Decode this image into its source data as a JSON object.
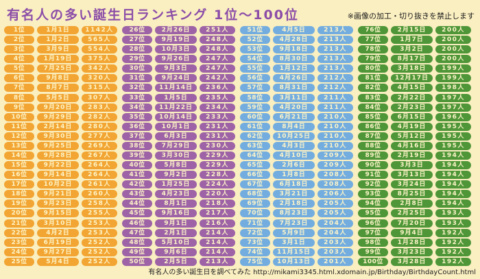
{
  "title": "有名人の多い誕生日ランキング 1位〜100位",
  "notice": "※画像の加工・切り抜きを禁止します",
  "footer": "有名人の多い誕生日を調べてみた http://mikami3345.html.xdomain.jp/Birthday/BirthdayCount.html",
  "colors": {
    "background": "#FAEFC1",
    "orange": "#F2A532",
    "purple": "#9D63A6",
    "blue": "#73ADDF",
    "green": "#4E9638",
    "title_text": "#8B4DA8",
    "pill_text": "#FDF4C8"
  },
  "columns": [
    {
      "color_key": "orange",
      "rows": [
        {
          "rank": "1位",
          "date": "1月1日",
          "count": "1142人"
        },
        {
          "rank": "2位",
          "date": "1月2日",
          "count": "565人"
        },
        {
          "rank": "3位",
          "date": "3月9日",
          "count": "554人"
        },
        {
          "rank": "4位",
          "date": "1月19日",
          "count": "375人"
        },
        {
          "rank": "5位",
          "date": "7月25日",
          "count": "342人"
        },
        {
          "rank": "6位",
          "date": "9月8日",
          "count": "320人"
        },
        {
          "rank": "7位",
          "date": "8月7日",
          "count": "315人"
        },
        {
          "rank": "8位",
          "date": "5月5日",
          "count": "307人"
        },
        {
          "rank": "9位",
          "date": "9月20日",
          "count": "283人"
        },
        {
          "rank": "10位",
          "date": "9月29日",
          "count": "282人"
        },
        {
          "rank": "11位",
          "date": "2月14日",
          "count": "280人"
        },
        {
          "rank": "12位",
          "date": "9月30日",
          "count": "277人"
        },
        {
          "rank": "13位",
          "date": "9月25日",
          "count": "269人"
        },
        {
          "rank": "14位",
          "date": "9月28日",
          "count": "267人"
        },
        {
          "rank": "15位",
          "date": "9月22日",
          "count": "264人"
        },
        {
          "rank": "16位",
          "date": "9月14日",
          "count": "264人"
        },
        {
          "rank": "17位",
          "date": "10月2日",
          "count": "261人"
        },
        {
          "rank": "18位",
          "date": "9月21日",
          "count": "260人"
        },
        {
          "rank": "19位",
          "date": "9月23日",
          "count": "258人"
        },
        {
          "rank": "20位",
          "date": "9月15日",
          "count": "255人"
        },
        {
          "rank": "21位",
          "date": "3月10日",
          "count": "253人"
        },
        {
          "rank": "22位",
          "date": "4月2日",
          "count": "253人"
        },
        {
          "rank": "23位",
          "date": "6月19日",
          "count": "252人"
        },
        {
          "rank": "24位",
          "date": "9月27日",
          "count": "252人"
        },
        {
          "rank": "25位",
          "date": "5月4日",
          "count": "252人"
        }
      ]
    },
    {
      "color_key": "purple",
      "rows": [
        {
          "rank": "26位",
          "date": "2月26日",
          "count": "251人"
        },
        {
          "rank": "27位",
          "date": "9月19日",
          "count": "248人"
        },
        {
          "rank": "28位",
          "date": "10月3日",
          "count": "248人"
        },
        {
          "rank": "29位",
          "date": "9月26日",
          "count": "247人"
        },
        {
          "rank": "30位",
          "date": "9月3日",
          "count": "247人"
        },
        {
          "rank": "31位",
          "date": "9月24日",
          "count": "242人"
        },
        {
          "rank": "32位",
          "date": "11月14日",
          "count": "236人"
        },
        {
          "rank": "33位",
          "date": "1月5日",
          "count": "235人"
        },
        {
          "rank": "34位",
          "date": "11月22日",
          "count": "234人"
        },
        {
          "rank": "35位",
          "date": "10月14日",
          "count": "233人"
        },
        {
          "rank": "36位",
          "date": "10月1日",
          "count": "231人"
        },
        {
          "rank": "37位",
          "date": "6月3日",
          "count": "231人"
        },
        {
          "rank": "38位",
          "date": "7月29日",
          "count": "230人"
        },
        {
          "rank": "39位",
          "date": "3月30日",
          "count": "229人"
        },
        {
          "rank": "40位",
          "date": "5月8日",
          "count": "229人"
        },
        {
          "rank": "41位",
          "date": "9月2日",
          "count": "228人"
        },
        {
          "rank": "42位",
          "date": "1月25日",
          "count": "224人"
        },
        {
          "rank": "43位",
          "date": "4月23日",
          "count": "220人"
        },
        {
          "rank": "44位",
          "date": "8月1日",
          "count": "218人"
        },
        {
          "rank": "45位",
          "date": "9月16日",
          "count": "217人"
        },
        {
          "rank": "46位",
          "date": "9月1日",
          "count": "216人"
        },
        {
          "rank": "47位",
          "date": "2月1日",
          "count": "214人"
        },
        {
          "rank": "48位",
          "date": "5月10日",
          "count": "214人"
        },
        {
          "rank": "49位",
          "date": "9月6日",
          "count": "214人"
        },
        {
          "rank": "50位",
          "date": "2月5日",
          "count": "213人"
        }
      ]
    },
    {
      "color_key": "blue",
      "rows": [
        {
          "rank": "51位",
          "date": "4月5日",
          "count": "213人"
        },
        {
          "rank": "52位",
          "date": "4月28日",
          "count": "213人"
        },
        {
          "rank": "53位",
          "date": "9月18日",
          "count": "213人"
        },
        {
          "rank": "54位",
          "date": "8月30日",
          "count": "213人"
        },
        {
          "rank": "55位",
          "date": "1月12日",
          "count": "213人"
        },
        {
          "rank": "56位",
          "date": "4月26日",
          "count": "212人"
        },
        {
          "rank": "57位",
          "date": "8月31日",
          "count": "212人"
        },
        {
          "rank": "58位",
          "date": "3月11日",
          "count": "211人"
        },
        {
          "rank": "59位",
          "date": "4月20日",
          "count": "211人"
        },
        {
          "rank": "60位",
          "date": "6月21日",
          "count": "210人"
        },
        {
          "rank": "61位",
          "date": "8月4日",
          "count": "210人"
        },
        {
          "rank": "62位",
          "date": "10月25日",
          "count": "210人"
        },
        {
          "rank": "63位",
          "date": "4月3日",
          "count": "210人"
        },
        {
          "rank": "64位",
          "date": "4月10日",
          "count": "209人"
        },
        {
          "rank": "65位",
          "date": "2月6日",
          "count": "209人"
        },
        {
          "rank": "66位",
          "date": "1月8日",
          "count": "208人"
        },
        {
          "rank": "67位",
          "date": "6月18日",
          "count": "208人"
        },
        {
          "rank": "68位",
          "date": "3月21日",
          "count": "206人"
        },
        {
          "rank": "69位",
          "date": "2月18日",
          "count": "205人"
        },
        {
          "rank": "70位",
          "date": "8月23日",
          "count": "205人"
        },
        {
          "rank": "71位",
          "date": "7月23日",
          "count": "204人"
        },
        {
          "rank": "72位",
          "date": "5月9日",
          "count": "204人"
        },
        {
          "rank": "73位",
          "date": "3月1日",
          "count": "203人"
        },
        {
          "rank": "74位",
          "date": "11月15日",
          "count": "203人"
        },
        {
          "rank": "75位",
          "date": "10月13日",
          "count": "201人"
        }
      ]
    },
    {
      "color_key": "green",
      "rows": [
        {
          "rank": "76位",
          "date": "2月15日",
          "count": "200人"
        },
        {
          "rank": "77位",
          "date": "1月7日",
          "count": "200人"
        },
        {
          "rank": "78位",
          "date": "3月2日",
          "count": "200人"
        },
        {
          "rank": "79位",
          "date": "8月17日",
          "count": "200人"
        },
        {
          "rank": "80位",
          "date": "3月18日",
          "count": "199人"
        },
        {
          "rank": "81位",
          "date": "12月17日",
          "count": "199人"
        },
        {
          "rank": "82位",
          "date": "4月15日",
          "count": "198人"
        },
        {
          "rank": "83位",
          "date": "2月22日",
          "count": "197人"
        },
        {
          "rank": "84位",
          "date": "2月23日",
          "count": "197人"
        },
        {
          "rank": "85位",
          "date": "6月15日",
          "count": "196人"
        },
        {
          "rank": "86位",
          "date": "4月19日",
          "count": "195人"
        },
        {
          "rank": "87位",
          "date": "5月12日",
          "count": "195人"
        },
        {
          "rank": "88位",
          "date": "4月16日",
          "count": "195人"
        },
        {
          "rank": "89位",
          "date": "2月19日",
          "count": "194人"
        },
        {
          "rank": "90位",
          "date": "3月3日",
          "count": "194人"
        },
        {
          "rank": "91位",
          "date": "3月13日",
          "count": "194人"
        },
        {
          "rank": "92位",
          "date": "3月24日",
          "count": "194人"
        },
        {
          "rank": "93位",
          "date": "8月25日",
          "count": "194人"
        },
        {
          "rank": "94位",
          "date": "2月8日",
          "count": "194人"
        },
        {
          "rank": "95位",
          "date": "2月25日",
          "count": "193人"
        },
        {
          "rank": "96位",
          "date": "7月20日",
          "count": "193人"
        },
        {
          "rank": "97位",
          "date": "9月4日",
          "count": "192人"
        },
        {
          "rank": "98位",
          "date": "1月28日",
          "count": "192人"
        },
        {
          "rank": "99位",
          "date": "3月23日",
          "count": "192人"
        },
        {
          "rank": "100位",
          "date": "3月28日",
          "count": "192人"
        }
      ]
    }
  ]
}
